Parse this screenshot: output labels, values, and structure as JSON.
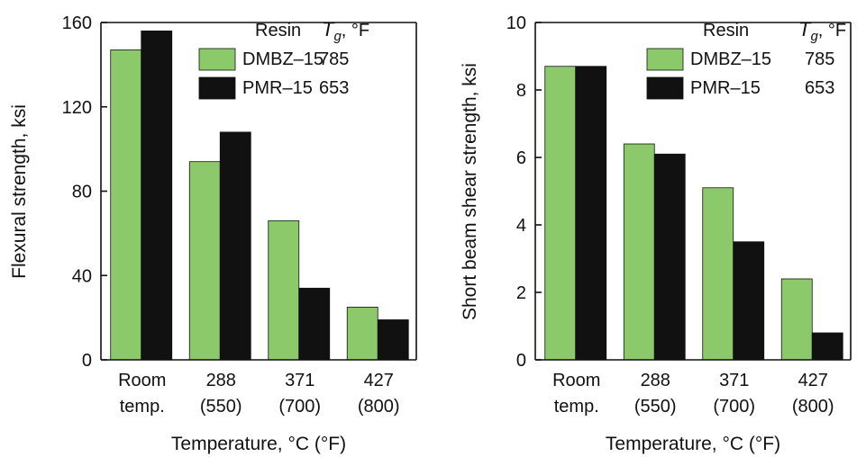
{
  "chart_data": [
    {
      "type": "bar",
      "categories": [
        [
          "Room",
          "temp."
        ],
        [
          "288",
          "(550)"
        ],
        [
          "371",
          "(700)"
        ],
        [
          "427",
          "(800)"
        ]
      ],
      "xlabel": "Temperature, °C (°F)",
      "ylabel": "Flexural strength, ksi",
      "ylim": [
        0,
        160
      ],
      "yticks": [
        0,
        40,
        80,
        120,
        160
      ],
      "grid": false,
      "legend": {
        "placement": "top-right",
        "header_name": "Resin",
        "header_value_main": "T",
        "header_value_sub": "g",
        "header_value_unit": ", °F"
      },
      "series": [
        {
          "name": "DMBZ–15",
          "tg": "785",
          "color": "#8cc96b",
          "values": [
            147,
            94,
            66,
            25
          ]
        },
        {
          "name": "PMR–15",
          "tg": "653",
          "color": "#111111",
          "values": [
            156,
            108,
            34,
            19
          ]
        }
      ]
    },
    {
      "type": "bar",
      "categories": [
        [
          "Room",
          "temp."
        ],
        [
          "288",
          "(550)"
        ],
        [
          "371",
          "(700)"
        ],
        [
          "427",
          "(800)"
        ]
      ],
      "xlabel": "Temperature, °C (°F)",
      "ylabel": "Short beam shear strength, ksi",
      "ylim": [
        0,
        10
      ],
      "yticks": [
        0,
        2,
        4,
        6,
        8,
        10
      ],
      "grid": false,
      "legend": {
        "placement": "top-right",
        "header_name": "Resin",
        "header_value_main": "T",
        "header_value_sub": "g",
        "header_value_unit": ", °F"
      },
      "series": [
        {
          "name": "DMBZ–15",
          "tg": "785",
          "color": "#8cc96b",
          "values": [
            8.7,
            6.4,
            5.1,
            2.4
          ]
        },
        {
          "name": "PMR–15",
          "tg": "653",
          "color": "#111111",
          "values": [
            8.7,
            6.1,
            3.5,
            0.8
          ]
        }
      ]
    }
  ]
}
